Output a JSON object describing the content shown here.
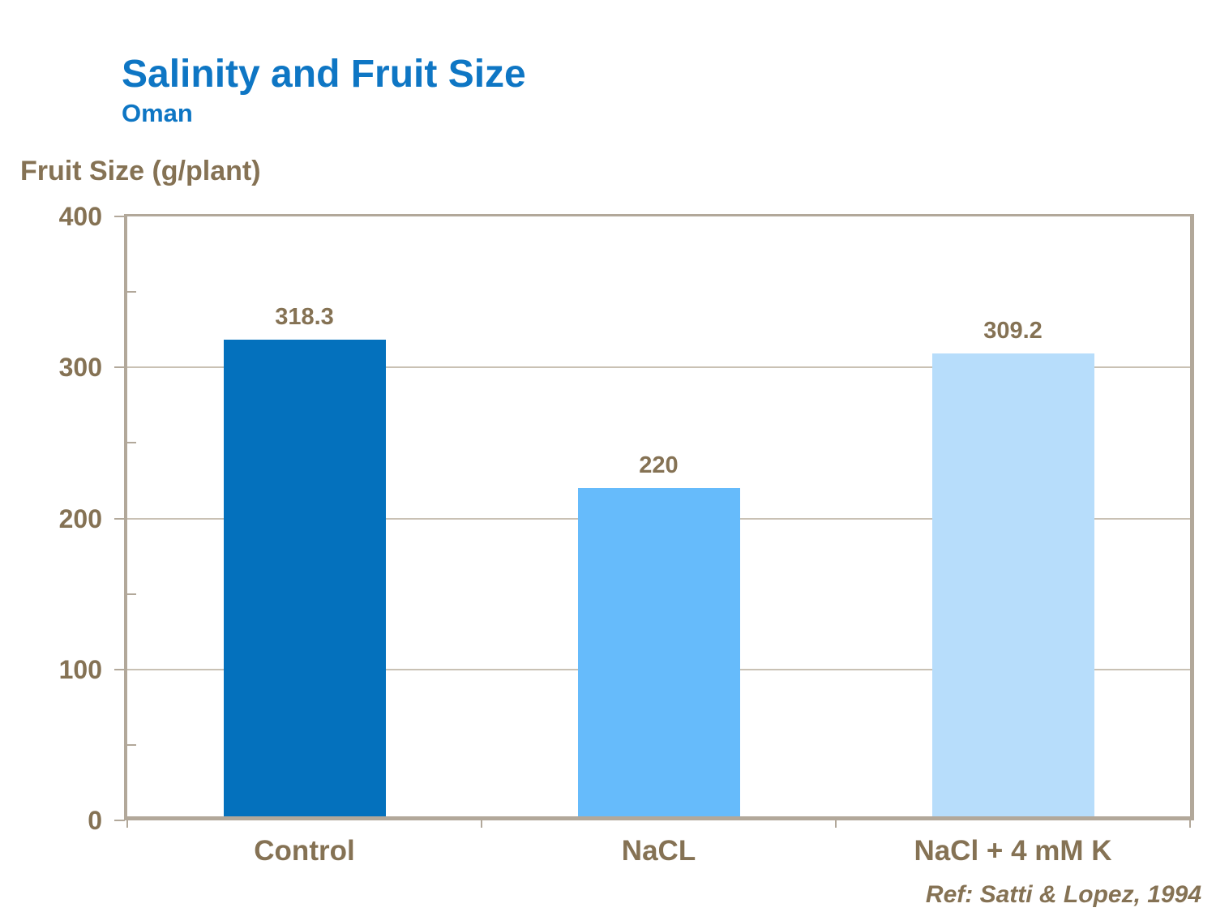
{
  "header": {
    "title": "Salinity and Fruit Size",
    "subtitle": "Oman"
  },
  "footer": {
    "reference": "Ref: Satti & Lopez, 1994"
  },
  "chart_data": {
    "type": "bar",
    "title": "Salinity and Fruit Size",
    "subtitle": "Oman",
    "ylabel": "Fruit Size (g/plant)",
    "xlabel": "",
    "categories": [
      "Control",
      "NaCL",
      "NaCl + 4 mM K"
    ],
    "values": [
      318.3,
      220,
      309.2
    ],
    "value_labels": [
      "318.3",
      "220",
      "309.2"
    ],
    "bar_colors": [
      "#0471bd",
      "#66bbfb",
      "#b7ddfb"
    ],
    "ylim": [
      0,
      400
    ],
    "ytick_step": 100,
    "yminor_step": 50,
    "ytick_labels": [
      "0",
      "100",
      "200",
      "300",
      "400"
    ],
    "grid": true,
    "legend_position": "none"
  },
  "colors": {
    "title_blue": "#0e76c4",
    "text_brown": "#857254",
    "axis_frame": "#b2a89a",
    "gridline": "#c9c1b4",
    "background": "#ffffff"
  }
}
